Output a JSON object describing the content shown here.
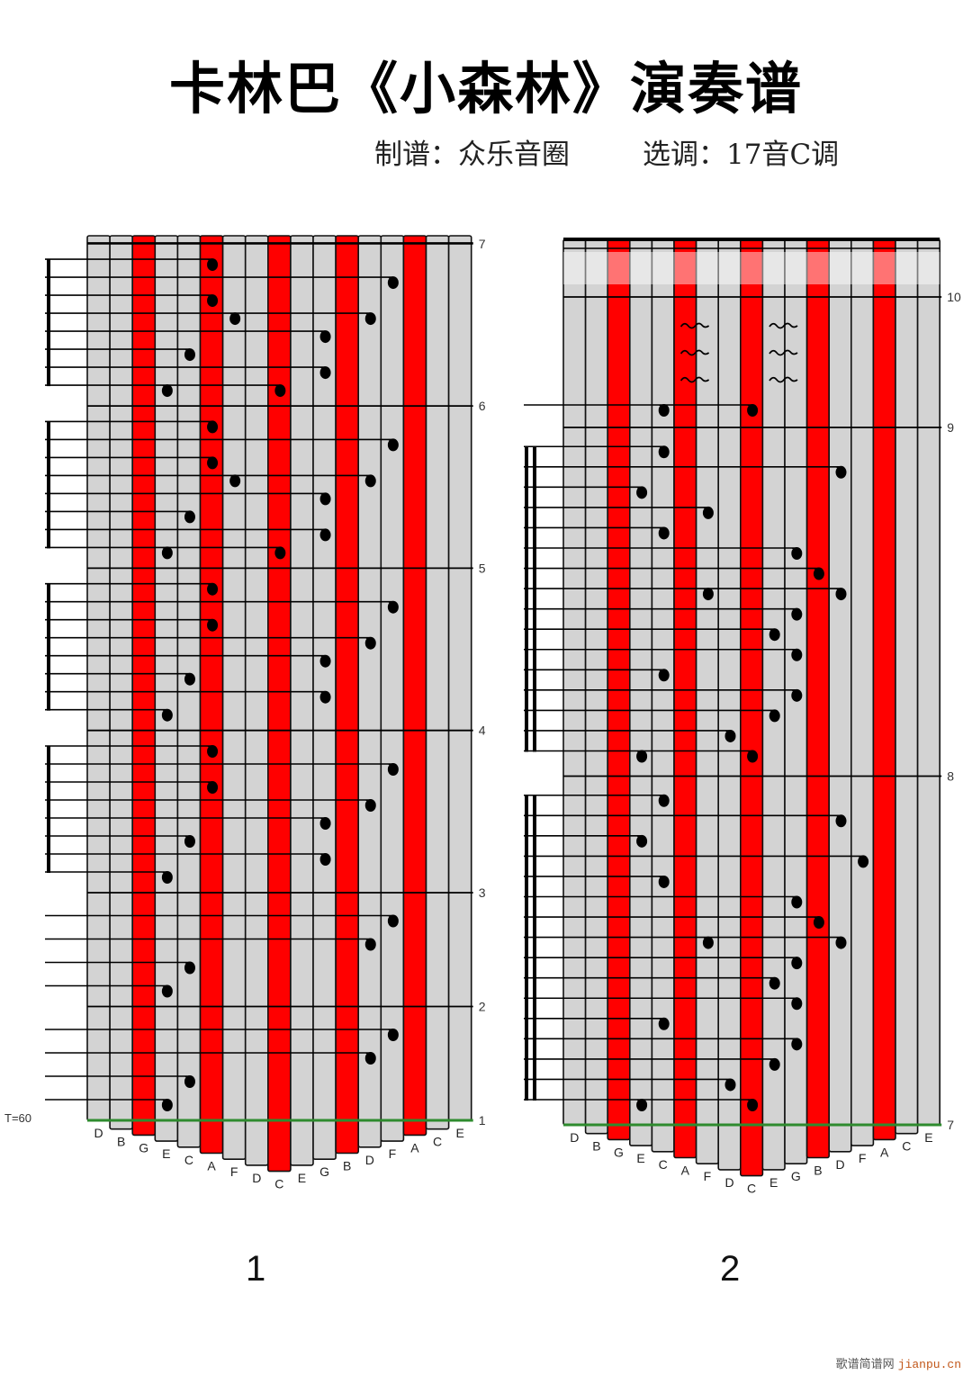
{
  "header": {
    "title": "卡林巴《小森林》演奏谱",
    "arranger": "制谱：众乐音圈",
    "key": "选调：17音C调"
  },
  "tempo": "T=60",
  "colors": {
    "tine": "#d3d3d3",
    "tine_marked": "#ff0000",
    "baseline": "#2e8b2e",
    "note": "#000000"
  },
  "tines": [
    "D",
    "B",
    "G",
    "E",
    "C",
    "A",
    "F",
    "D",
    "C",
    "E",
    "G",
    "B",
    "D",
    "F",
    "A",
    "C",
    "E"
  ],
  "marked_tines": [
    2,
    5,
    8,
    11,
    14
  ],
  "panels": [
    {
      "page_label": "1",
      "measures": [
        {
          "number": "1",
          "beat": "quarter",
          "steps": [
            [
              3
            ],
            [
              4
            ],
            [
              12
            ],
            [
              13
            ]
          ]
        },
        {
          "number": "2",
          "beat": "quarter",
          "steps": [
            [
              3
            ],
            [
              4
            ],
            [
              12
            ],
            [
              13
            ]
          ]
        },
        {
          "number": "3",
          "beat": "eighth",
          "steps": [
            [
              3
            ],
            [
              10
            ],
            [
              4
            ],
            [
              10
            ],
            [
              12
            ],
            [
              5
            ],
            [
              13
            ],
            [
              5
            ]
          ]
        },
        {
          "number": "4",
          "beat": "eighth",
          "steps": [
            [
              3
            ],
            [
              10
            ],
            [
              4
            ],
            [
              10
            ],
            [
              12
            ],
            [
              5
            ],
            [
              13
            ],
            [
              5
            ]
          ]
        },
        {
          "number": "5",
          "beat": "eighth",
          "steps": [
            [
              3,
              8
            ],
            [
              10
            ],
            [
              4
            ],
            [
              10
            ],
            [
              6,
              12
            ],
            [
              5
            ],
            [
              13
            ],
            [
              5
            ]
          ]
        },
        {
          "number": "6",
          "beat": "eighth",
          "steps": [
            [
              3,
              8
            ],
            [
              10
            ],
            [
              4
            ],
            [
              10
            ],
            [
              6,
              12
            ],
            [
              5
            ],
            [
              13
            ],
            [
              5
            ]
          ]
        },
        {
          "number": "7",
          "beat": "none",
          "steps": []
        }
      ]
    },
    {
      "page_label": "2",
      "measures": [
        {
          "number": "7",
          "beat": "sixteenth",
          "steps": [
            [
              3,
              8
            ],
            [
              7
            ],
            [
              9
            ],
            [
              10
            ],
            [
              4
            ],
            [
              10
            ],
            [
              9
            ],
            [
              10
            ],
            [
              6,
              12
            ],
            [
              11
            ],
            [
              10
            ],
            [
              4
            ],
            [
              13
            ],
            [
              3
            ],
            [
              12
            ],
            [
              4
            ]
          ]
        },
        {
          "number": "8",
          "beat": "sixteenth",
          "steps": [
            [
              3,
              8
            ],
            [
              7
            ],
            [
              9
            ],
            [
              10
            ],
            [
              4
            ],
            [
              10
            ],
            [
              9
            ],
            [
              10
            ],
            [
              6,
              12
            ],
            [
              11
            ],
            [
              10
            ],
            [
              4
            ],
            [
              6
            ],
            [
              3
            ],
            [
              12
            ],
            [
              4
            ]
          ]
        },
        {
          "number": "9",
          "beat": "quarter",
          "steps": [
            [
              4,
              8
            ]
          ],
          "ornaments": [
            {
              "between": [
                5,
                6
              ],
              "count": 3
            },
            {
              "between": [
                9,
                10
              ],
              "count": 3
            }
          ]
        },
        {
          "number": "10",
          "beat": "none",
          "steps": []
        }
      ]
    }
  ],
  "watermark": {
    "cn": "歌谱简谱网",
    "en": "jianpu.cn"
  }
}
